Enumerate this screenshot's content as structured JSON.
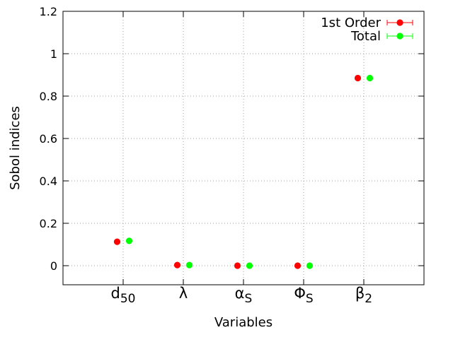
{
  "chart_data": {
    "type": "scatter",
    "categories": [
      "d",
      "λ",
      "α",
      "Φ",
      "β"
    ],
    "category_subscripts": [
      "50",
      "",
      "S",
      "S",
      "2"
    ],
    "series": [
      {
        "name": "1st Order",
        "color": "#ff0000",
        "values": [
          0.113,
          0.003,
          0.0,
          0.0,
          0.885
        ]
      },
      {
        "name": "Total",
        "color": "#00ff00",
        "values": [
          0.117,
          0.003,
          0.0,
          0.0,
          0.885
        ]
      }
    ],
    "xlabel": "Variables",
    "ylabel": "Sobol indices",
    "ylim": [
      -0.09,
      1.2
    ],
    "yticks": [
      0,
      0.2,
      0.4,
      0.6,
      0.8,
      1,
      1.2
    ],
    "ytick_labels": [
      "0",
      "0.2",
      "0.4",
      "0.6",
      "0.8",
      "1",
      "1.2"
    ],
    "grid": true,
    "legend_position": "top-right"
  }
}
